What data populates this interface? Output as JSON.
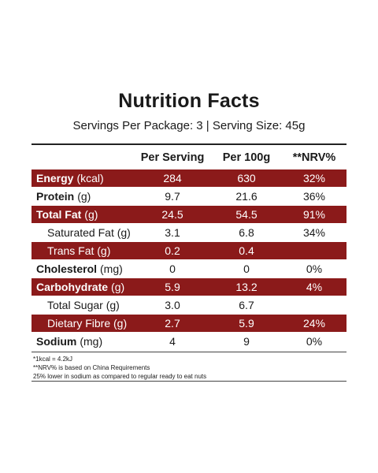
{
  "title": "Nutrition Facts",
  "subtitle": "Servings Per Package: 3 | Serving Size: 45g",
  "columns": [
    "Per Serving",
    "Per 100g",
    "**NRV%"
  ],
  "rows": [
    {
      "name_bold": "Energy",
      "unit": "(kcal)",
      "per_serving": "284",
      "per_100g": "630",
      "nrv": "32%",
      "dark": true,
      "sub": false
    },
    {
      "name_bold": "Protein",
      "unit": "(g)",
      "per_serving": "9.7",
      "per_100g": "21.6",
      "nrv": "36%",
      "dark": false,
      "sub": false
    },
    {
      "name_bold": "Total Fat",
      "unit": "(g)",
      "per_serving": "24.5",
      "per_100g": "54.5",
      "nrv": "91%",
      "dark": true,
      "sub": false
    },
    {
      "name_bold": "",
      "unit": "Saturated Fat (g)",
      "per_serving": "3.1",
      "per_100g": "6.8",
      "nrv": "34%",
      "dark": false,
      "sub": true
    },
    {
      "name_bold": "",
      "unit": "Trans Fat (g)",
      "per_serving": "0.2",
      "per_100g": "0.4",
      "nrv": "",
      "dark": true,
      "sub": true
    },
    {
      "name_bold": "Cholesterol",
      "unit": "(mg)",
      "per_serving": "0",
      "per_100g": "0",
      "nrv": "0%",
      "dark": false,
      "sub": false
    },
    {
      "name_bold": "Carbohydrate",
      "unit": "(g)",
      "per_serving": "5.9",
      "per_100g": "13.2",
      "nrv": "4%",
      "dark": true,
      "sub": false
    },
    {
      "name_bold": "",
      "unit": "Total Sugar (g)",
      "per_serving": "3.0",
      "per_100g": "6.7",
      "nrv": "",
      "dark": false,
      "sub": true
    },
    {
      "name_bold": "",
      "unit": "Dietary Fibre (g)",
      "per_serving": "2.7",
      "per_100g": "5.9",
      "nrv": "24%",
      "dark": true,
      "sub": true
    },
    {
      "name_bold": "Sodium",
      "unit": "(mg)",
      "per_serving": "4",
      "per_100g": "9",
      "nrv": "0%",
      "dark": false,
      "sub": false
    }
  ],
  "footnotes": [
    "*1kcal = 4.2kJ",
    "**NRV% is based on China Requirements",
    "25% lower in sodium as compared to regular ready to eat nuts"
  ],
  "colors": {
    "accent": "#8b1a1a",
    "text": "#1a1a1a",
    "background": "#ffffff"
  }
}
